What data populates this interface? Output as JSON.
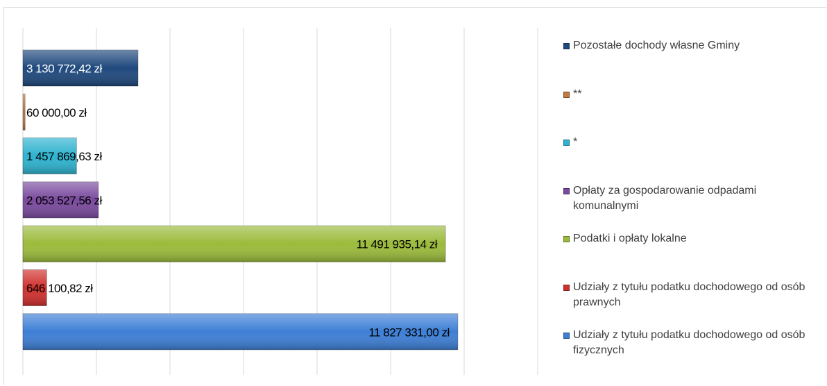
{
  "chart_data": {
    "type": "barh",
    "categories": [
      "Pozostałe dochody własne Gminy",
      "**",
      "*",
      "Opłaty za gospodarowanie odpadami komunalnymi",
      "Podatki i opłaty lokalne",
      "Udziały z tytułu podatku dochodowego od osób prawnych",
      "Udziały z tytułu podatku dochodowego od osób fizycznych"
    ],
    "values": [
      3130772.42,
      60000,
      1457869.63,
      2053527.56,
      11491935.14,
      646100.82,
      11827331
    ],
    "value_labels": [
      "3 130 772,42 zł",
      "60 000,00 zł",
      "1 457 869,63 zł",
      "2 053 527,56 zł",
      "11 491 935,14 zł",
      "646 100,82 zł",
      "11 827 331,00 zł"
    ],
    "colors": [
      "#1f497d",
      "#c07a40",
      "#2eb3cf",
      "#7a4a9e",
      "#9bbb3b",
      "#d0302d",
      "#3d7fd6"
    ],
    "xlim": [
      0,
      12000000
    ],
    "xticks": [
      0,
      2000000,
      4000000,
      6000000,
      8000000,
      10000000,
      12000000
    ],
    "grid": true,
    "legend": "right"
  }
}
